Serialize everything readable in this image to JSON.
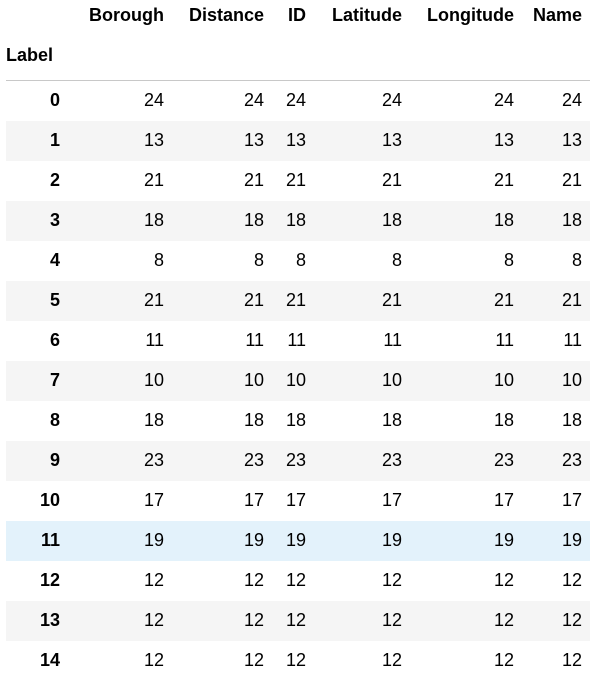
{
  "table": {
    "index_name": "Label",
    "columns": [
      "Borough",
      "Distance",
      "ID",
      "Latitude",
      "Longitude",
      "Name"
    ],
    "highlighted_row": 11,
    "rows": [
      {
        "label": "0",
        "values": [
          "24",
          "24",
          "24",
          "24",
          "24",
          "24"
        ]
      },
      {
        "label": "1",
        "values": [
          "13",
          "13",
          "13",
          "13",
          "13",
          "13"
        ]
      },
      {
        "label": "2",
        "values": [
          "21",
          "21",
          "21",
          "21",
          "21",
          "21"
        ]
      },
      {
        "label": "3",
        "values": [
          "18",
          "18",
          "18",
          "18",
          "18",
          "18"
        ]
      },
      {
        "label": "4",
        "values": [
          "8",
          "8",
          "8",
          "8",
          "8",
          "8"
        ]
      },
      {
        "label": "5",
        "values": [
          "21",
          "21",
          "21",
          "21",
          "21",
          "21"
        ]
      },
      {
        "label": "6",
        "values": [
          "11",
          "11",
          "11",
          "11",
          "11",
          "11"
        ]
      },
      {
        "label": "7",
        "values": [
          "10",
          "10",
          "10",
          "10",
          "10",
          "10"
        ]
      },
      {
        "label": "8",
        "values": [
          "18",
          "18",
          "18",
          "18",
          "18",
          "18"
        ]
      },
      {
        "label": "9",
        "values": [
          "23",
          "23",
          "23",
          "23",
          "23",
          "23"
        ]
      },
      {
        "label": "10",
        "values": [
          "17",
          "17",
          "17",
          "17",
          "17",
          "17"
        ]
      },
      {
        "label": "11",
        "values": [
          "19",
          "19",
          "19",
          "19",
          "19",
          "19"
        ]
      },
      {
        "label": "12",
        "values": [
          "12",
          "12",
          "12",
          "12",
          "12",
          "12"
        ]
      },
      {
        "label": "13",
        "values": [
          "12",
          "12",
          "12",
          "12",
          "12",
          "12"
        ]
      },
      {
        "label": "14",
        "values": [
          "12",
          "12",
          "12",
          "12",
          "12",
          "12"
        ]
      }
    ]
  },
  "colors": {
    "stripe": "#f5f5f5",
    "hover": "#e3f2fb",
    "header_border": "#c8c8c8"
  }
}
